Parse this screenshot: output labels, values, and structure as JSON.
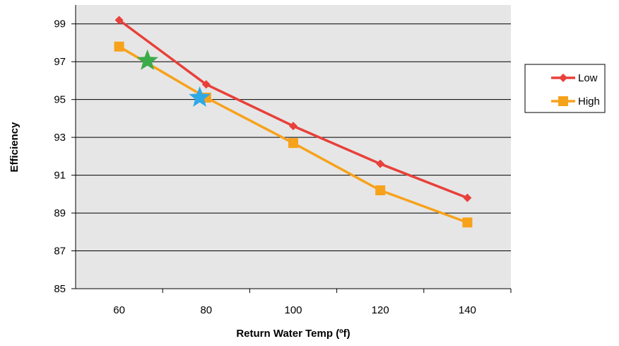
{
  "chart_data": {
    "type": "line",
    "xlabel": "Return Water Temp (ºf)",
    "ylabel": "Efficiency",
    "x": [
      60,
      80,
      100,
      120,
      140
    ],
    "xlim": [
      50,
      150
    ],
    "ylim": [
      85,
      100
    ],
    "xticks": [
      60,
      80,
      100,
      120,
      140
    ],
    "yticks": [
      85,
      87,
      89,
      91,
      93,
      95,
      97,
      99
    ],
    "grid": "horizontal",
    "plot_background": "#e6e6e6",
    "legend_position": "right",
    "series": [
      {
        "name": "Low",
        "values": [
          99.2,
          95.8,
          93.6,
          91.6,
          89.8
        ],
        "color": "#e8403a",
        "marker": "diamond"
      },
      {
        "name": "High",
        "values": [
          97.8,
          95.1,
          92.7,
          90.2,
          88.5
        ],
        "color": "#f7a21b",
        "marker": "square"
      }
    ],
    "annotations": [
      {
        "shape": "star",
        "x": 66.5,
        "y": 97.05,
        "color": "#3cab4a"
      },
      {
        "shape": "star",
        "x": 78.5,
        "y": 95.1,
        "color": "#2ea9e6"
      }
    ]
  }
}
